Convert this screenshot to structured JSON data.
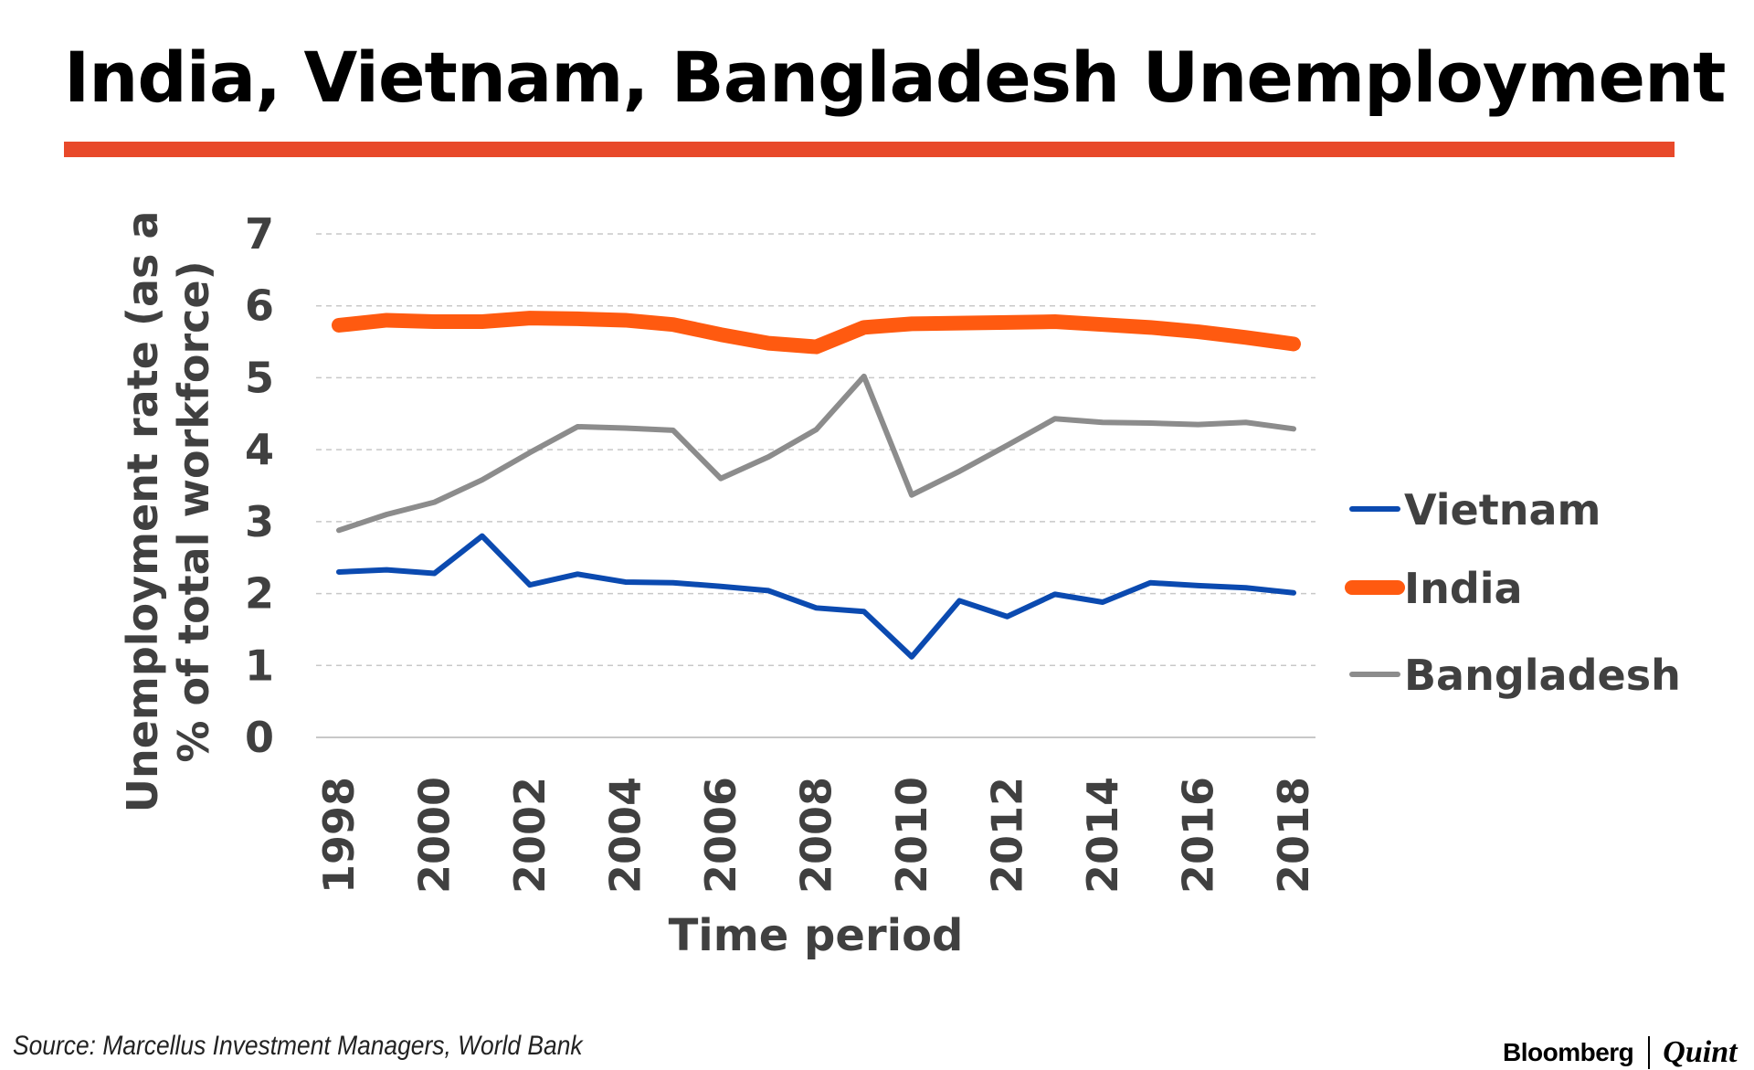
{
  "header": {
    "title": "India, Vietnam, Bangladesh Unemployment"
  },
  "colors": {
    "title_bar": "#e8492a",
    "india": "#ff5a10",
    "vietnam": "#0b4ab0",
    "bangladesh": "#8c8c8c",
    "axis_text": "#404040",
    "grid": "#c8c8c8"
  },
  "chart_data": {
    "type": "line",
    "xlabel": "Time period",
    "ylabel": "Unemployment rate (as a % of total workforce)",
    "ylabel_lines": [
      "Unemployment rate (as a",
      "% of total workforce)"
    ],
    "ylim": [
      0,
      7
    ],
    "yticks": [
      0,
      1,
      2,
      3,
      4,
      5,
      6,
      7
    ],
    "xticks": [
      "1998",
      "2000",
      "2002",
      "2004",
      "2006",
      "2008",
      "2010",
      "2012",
      "2014",
      "2016",
      "2018"
    ],
    "x": [
      1998,
      1999,
      2000,
      2001,
      2002,
      2003,
      2004,
      2005,
      2006,
      2007,
      2008,
      2009,
      2010,
      2011,
      2012,
      2013,
      2014,
      2015,
      2016,
      2017,
      2018
    ],
    "grid": true,
    "legend_position": "right",
    "series": [
      {
        "name": "Vietnam",
        "color": "#0b4ab0",
        "values": [
          2.3,
          2.33,
          2.28,
          2.8,
          2.12,
          2.27,
          2.16,
          2.15,
          2.1,
          2.04,
          1.8,
          1.75,
          1.12,
          1.9,
          1.68,
          1.99,
          1.88,
          2.15,
          2.11,
          2.08,
          2.01
        ]
      },
      {
        "name": "India",
        "color": "#ff5a10",
        "values": [
          5.73,
          5.8,
          5.78,
          5.78,
          5.83,
          5.82,
          5.8,
          5.74,
          5.6,
          5.48,
          5.43,
          5.7,
          5.75,
          5.76,
          5.77,
          5.78,
          5.74,
          5.7,
          5.64,
          5.56,
          5.47
        ]
      },
      {
        "name": "Bangladesh",
        "color": "#8c8c8c",
        "values": [
          2.88,
          3.1,
          3.27,
          3.58,
          3.96,
          4.32,
          4.3,
          4.27,
          3.6,
          3.9,
          4.28,
          5.02,
          3.37,
          3.7,
          4.06,
          4.43,
          4.38,
          4.37,
          4.35,
          4.38,
          4.29
        ]
      }
    ]
  },
  "footer": {
    "source": "Source: Marcellus Investment Managers, World Bank",
    "brand_left": "Bloomberg",
    "brand_right": "Quint"
  }
}
